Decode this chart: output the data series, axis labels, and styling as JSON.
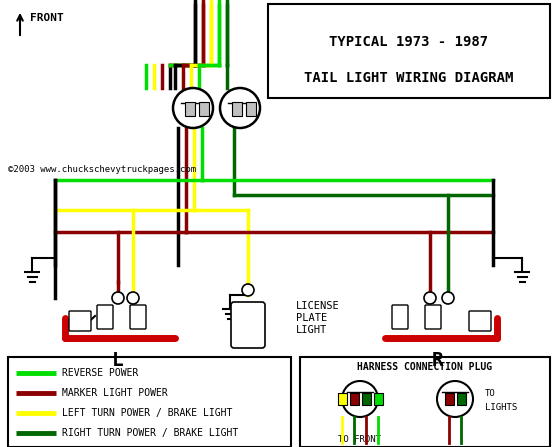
{
  "title_line1": "TYPICAL 1973 - 1987",
  "title_line2": "TAIL LIGHT WIRING DIAGRAM",
  "copyright": "©2003 www.chuckschevytruckpages.com",
  "bg_color": "#ffffff",
  "wire_colors": {
    "green_bright": "#00dd00",
    "dark_red": "#8b0000",
    "yellow": "#ffff00",
    "green_dark": "#006600",
    "black": "#000000",
    "white": "#ffffff",
    "red": "#cc0000"
  },
  "legend": [
    {
      "color": "#00dd00",
      "label": "REVERSE POWER"
    },
    {
      "color": "#8b0000",
      "label": "MARKER LIGHT POWER"
    },
    {
      "color": "#ffff00",
      "label": "LEFT TURN POWER / BRAKE LIGHT"
    },
    {
      "color": "#006600",
      "label": "RIGHT TURN POWER / BRAKE LIGHT"
    }
  ]
}
